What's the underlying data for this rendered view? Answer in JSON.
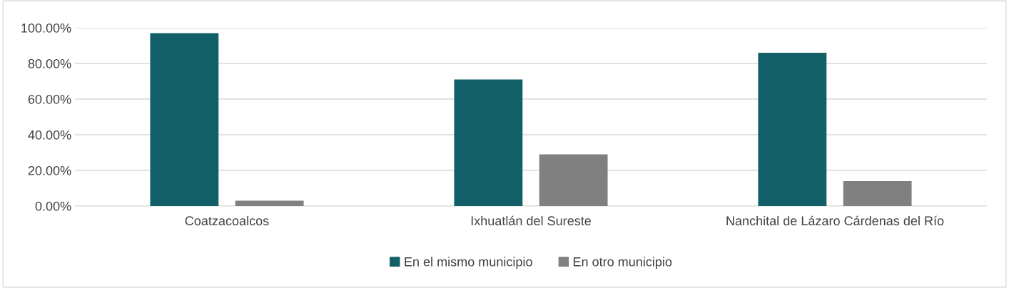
{
  "chart_data": {
    "type": "bar",
    "categories": [
      "Coatzacoalcos",
      "Ixhuatlán del Sureste",
      "Nanchital de Lázaro Cárdenas del Río"
    ],
    "series": [
      {
        "name": "En el mismo municipio",
        "color": "#135f68",
        "values": [
          97,
          71,
          86
        ]
      },
      {
        "name": "En otro municipio",
        "color": "#808080",
        "values": [
          3,
          29,
          14
        ]
      }
    ],
    "ylim": [
      0,
      100
    ],
    "yticks": [
      {
        "value": 0,
        "label": "0.00%"
      },
      {
        "value": 20,
        "label": "20.00%"
      },
      {
        "value": 40,
        "label": "40.00%"
      },
      {
        "value": 60,
        "label": "60.00%"
      },
      {
        "value": 80,
        "label": "80.00%"
      },
      {
        "value": 100,
        "label": "100.00%"
      }
    ],
    "grid": "y",
    "legend": "bottom"
  }
}
